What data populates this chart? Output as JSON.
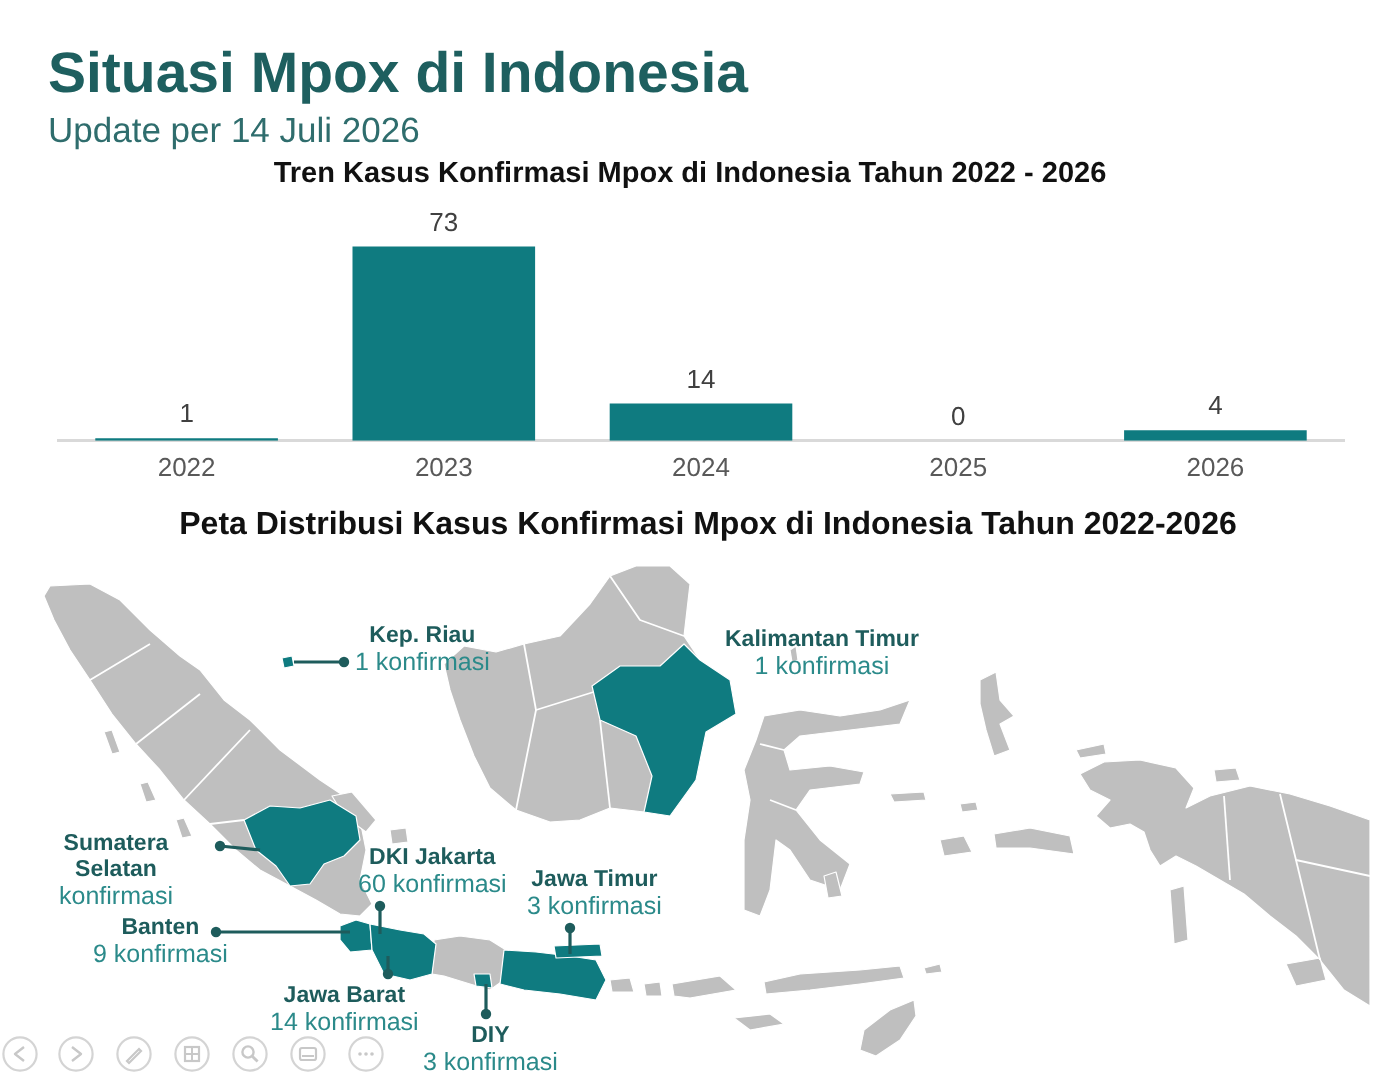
{
  "chart_data": [
    {
      "type": "other",
      "title": "Situasi Mpox di Indonesia",
      "subtitle": "Update per 14 Juli 2026"
    },
    {
      "type": "bar",
      "title": "Tren Kasus Konfirmasi Mpox di Indonesia Tahun 2022 - 2026",
      "categories": [
        "2022",
        "2023",
        "2024",
        "2025",
        "2026"
      ],
      "values": [
        1,
        73,
        14,
        0,
        4
      ],
      "color": "#0f7b80",
      "data_labels": true
    },
    {
      "type": "other",
      "title": "Peta Distribusi Kasus Konfirmasi Mpox di Indonesia Tahun 2022-2026",
      "categories": [
        "Kep. Riau",
        "Kalimantan Timur",
        "Sumatera Selatan",
        "DKI Jakarta",
        "Jawa Timur",
        "Banten",
        "Jawa Barat",
        "DIY"
      ],
      "value_labels": [
        "1 konfirmasi",
        "1 konfirmasi",
        "konfirmasi",
        "60 konfirmasi",
        "3 konfirmasi",
        "9 konfirmasi",
        "14 konfirmasi",
        "3 konfirmasi"
      ],
      "color": "#0f7b80"
    }
  ]
}
